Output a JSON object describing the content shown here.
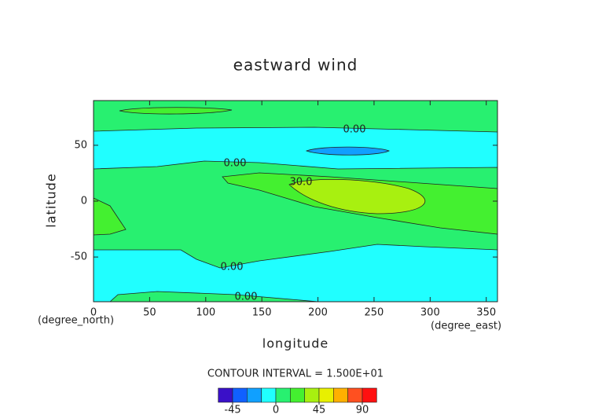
{
  "chart_data": {
    "type": "contour",
    "title": "eastward wind",
    "x_label": "longitude",
    "y_label": "latitude",
    "x_unit": "(degree_east)",
    "y_unit": "(degree_north)",
    "xlim": [
      0,
      360
    ],
    "ylim": [
      -90,
      90
    ],
    "xticks": [
      0,
      50,
      100,
      150,
      200,
      250,
      300,
      350
    ],
    "yticks": [
      -50,
      0,
      50
    ],
    "contour_interval_label": "CONTOUR INTERVAL = 1.500E+01",
    "levels": [
      -60,
      -45,
      -30,
      -15,
      0,
      15,
      30,
      45,
      60,
      75,
      90,
      105
    ],
    "colors": [
      "#3a10c8",
      "#1060ff",
      "#10a0ff",
      "#20ffff",
      "#28f070",
      "#44f030",
      "#a8f010",
      "#e8f000",
      "#ffb000",
      "#ff5020",
      "#ff1010"
    ],
    "colorbar_ticks": [
      -45,
      0,
      45,
      90
    ],
    "contour_labels": [
      "0.00",
      "0.00",
      "30.0",
      "0.00",
      "0.00"
    ]
  }
}
